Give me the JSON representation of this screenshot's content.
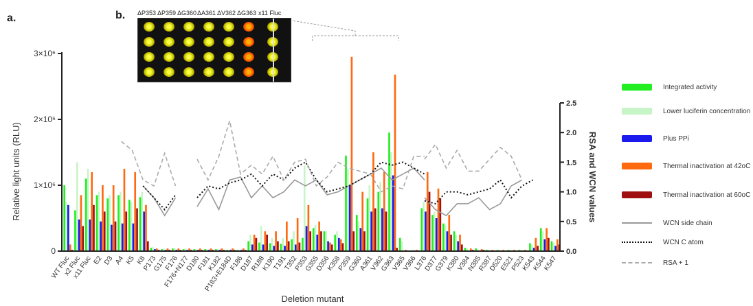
{
  "panel_labels": {
    "a": "a.",
    "b": "b."
  },
  "inset": {
    "labels": [
      "ΔP353",
      "ΔP359",
      "ΔG360",
      "ΔA361",
      "ΔV362",
      "ΔG363",
      "x11 Fluc"
    ],
    "rows": 4
  },
  "chart_data": {
    "type": "bar",
    "xlabel": "Deletion mutant",
    "ylabel": "Relative light units (RLU)",
    "y2label": "RSA and WCN values",
    "ylim": [
      0,
      3000000
    ],
    "y_ticks": [
      {
        "v": 0,
        "label": "0"
      },
      {
        "v": 1000000,
        "label": "1×10⁶"
      },
      {
        "v": 2000000,
        "label": "2×10⁶"
      },
      {
        "v": 3000000,
        "label": "3×10⁶"
      }
    ],
    "y2lim": [
      0,
      2.5
    ],
    "y2_ticks": [
      "0.0",
      "0.5",
      "1.0",
      "1.5",
      "2.0",
      "2.5"
    ],
    "categories": [
      "WT Fluc",
      "x2 Fluc",
      "x11 Fluc",
      "E2",
      "D3",
      "A4",
      "K5",
      "K8",
      "P173",
      "G175",
      "F176",
      "F176+N177",
      "D180",
      "F181",
      "K182",
      "P183+E184D",
      "F186",
      "D187",
      "R188",
      "K190",
      "T191",
      "T352",
      "P353",
      "G355",
      "D356",
      "K358",
      "P359",
      "G360",
      "A361",
      "V362",
      "G363",
      "V365",
      "V366",
      "L376",
      "D377",
      "G379",
      "K380",
      "V384",
      "N385",
      "R387",
      "D520",
      "E521",
      "P523",
      "K543",
      "K544",
      "K547"
    ],
    "series": [
      {
        "name": "Integrated activity",
        "color": "#22ee22",
        "values": [
          1000000,
          620000,
          1100000,
          850000,
          800000,
          850000,
          780000,
          820000,
          50000,
          30000,
          40000,
          30000,
          30000,
          30000,
          30000,
          20000,
          20000,
          150000,
          130000,
          120000,
          110000,
          180000,
          200000,
          350000,
          300000,
          250000,
          1450000,
          550000,
          800000,
          900000,
          1800000,
          200000,
          10000,
          650000,
          550000,
          420000,
          300000,
          50000,
          40000,
          20000,
          20000,
          20000,
          20000,
          120000,
          350000,
          150000
        ]
      },
      {
        "name": "Lower luciferin concentration",
        "color": "#c8f5c8",
        "values": [
          750000,
          1350000,
          1250000,
          900000,
          850000,
          900000,
          750000,
          900000,
          60000,
          40000,
          50000,
          40000,
          30000,
          30000,
          30000,
          20000,
          20000,
          250000,
          380000,
          200000,
          200000,
          300000,
          1300000,
          400000,
          300000,
          300000,
          1250000,
          450000,
          1000000,
          1050000,
          1500000,
          150000,
          20000,
          750000,
          600000,
          400000,
          250000,
          40000,
          30000,
          20000,
          20000,
          20000,
          20000,
          100000,
          300000,
          130000
        ]
      },
      {
        "name": "Plus PPi",
        "color": "#1a1aee",
        "values": [
          700000,
          480000,
          480000,
          450000,
          400000,
          420000,
          420000,
          600000,
          30000,
          20000,
          20000,
          20000,
          20000,
          20000,
          20000,
          20000,
          20000,
          100000,
          100000,
          80000,
          80000,
          100000,
          380000,
          250000,
          150000,
          200000,
          1000000,
          350000,
          600000,
          650000,
          1150000,
          10000,
          10000,
          600000,
          500000,
          300000,
          150000,
          10000,
          10000,
          10000,
          10000,
          10000,
          10000,
          50000,
          180000,
          80000
        ]
      },
      {
        "name": "Thermal inactivation at 42oC",
        "color": "#ff6a10",
        "values": [
          100000,
          850000,
          1200000,
          1000000,
          1000000,
          1250000,
          1200000,
          700000,
          40000,
          40000,
          40000,
          40000,
          40000,
          40000,
          40000,
          40000,
          40000,
          250000,
          300000,
          300000,
          450000,
          500000,
          700000,
          450000,
          130000,
          180000,
          2950000,
          900000,
          1500000,
          1200000,
          2680000,
          20000,
          20000,
          1200000,
          950000,
          550000,
          250000,
          40000,
          30000,
          20000,
          20000,
          20000,
          20000,
          200000,
          350000,
          180000
        ]
      },
      {
        "name": "Thermal inactivation at 60oC",
        "color": "#a01010",
        "values": [
          20000,
          380000,
          700000,
          600000,
          450000,
          600000,
          650000,
          150000,
          20000,
          20000,
          20000,
          20000,
          20000,
          20000,
          20000,
          20000,
          20000,
          200000,
          250000,
          150000,
          150000,
          130000,
          300000,
          300000,
          100000,
          120000,
          300000,
          300000,
          650000,
          600000,
          50000,
          10000,
          10000,
          900000,
          800000,
          250000,
          100000,
          20000,
          20000,
          10000,
          10000,
          10000,
          10000,
          80000,
          200000,
          100000
        ]
      }
    ],
    "lines": [
      {
        "name": "WCN side chain",
        "color": "#999999",
        "style": "solid",
        "segments": [
          {
            "start": "K8",
            "values": [
              1.1,
              0.9,
              0.6,
              0.9
            ]
          },
          {
            "start": "D180",
            "values": [
              0.75,
              1.05,
              0.7,
              1.2,
              1.25,
              0.9,
              1.1,
              0.9,
              1.0,
              1.2,
              1.1,
              1.2,
              0.95,
              1.0,
              1.1,
              1.2,
              1.3,
              1.4,
              1.2,
              1.3,
              1.4,
              1.2
            ]
          },
          {
            "start": "L376",
            "values": [
              0.9,
              0.7,
              0.6,
              0.8,
              0.8,
              0.9,
              0.7,
              0.8,
              1.1,
              1.2
            ]
          }
        ]
      },
      {
        "name": "WCN C atom",
        "color": "#111111",
        "style": "dotted",
        "segments": [
          {
            "start": "K8",
            "values": [
              1.1,
              0.9,
              0.7,
              0.95
            ]
          },
          {
            "start": "D180",
            "values": [
              0.9,
              1.1,
              1.05,
              1.15,
              1.2,
              1.3,
              1.1,
              1.3,
              1.2,
              1.4,
              1.5,
              1.2,
              1.0,
              1.05,
              1.1,
              1.2,
              1.3,
              1.5,
              1.45,
              1.5,
              1.4,
              1.3
            ]
          },
          {
            "start": "L376",
            "values": [
              0.85,
              0.8,
              1.0,
              1.0,
              0.95,
              1.0,
              1.05,
              1.2,
              0.9,
              1.1,
              1.2
            ]
          }
        ]
      },
      {
        "name": "RSA + 1",
        "color": "#aaaaaa",
        "style": "dashed",
        "segments": [
          {
            "start": "A4",
            "values": [
              1.85,
              1.7,
              1.2,
              1.1,
              1.65,
              1.1
            ]
          },
          {
            "start": "D180",
            "values": [
              1.55,
              1.2,
              1.6,
              2.2,
              1.3,
              1.45,
              1.3,
              1.6,
              1.2,
              1.5,
              1.55,
              1.1,
              1.25,
              1.5,
              1.4,
              1.35,
              1.3,
              1.0,
              1.1,
              1.05,
              1.6,
              1.6
            ]
          },
          {
            "start": "L376",
            "values": [
              1.55,
              1.8,
              1.4,
              1.7,
              1.35,
              1.35,
              1.55,
              1.75,
              1.6,
              1.2
            ]
          }
        ]
      }
    ],
    "legend_position": "right",
    "grid": false
  }
}
